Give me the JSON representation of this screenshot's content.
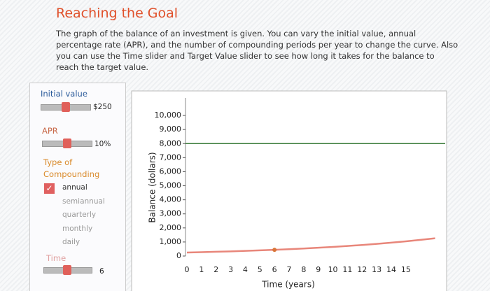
{
  "header": {
    "title": "Reaching the Goal",
    "description": "The graph of the balance of an investment is given. You can vary the initial value, annual percentage rate (APR), and the number of compounding periods per year to change the curve. Also you can use the Time slider and Target Value slider to see how long it takes for the balance to reach the target value."
  },
  "controls": {
    "initial_value": {
      "label": "Initial value",
      "value_label": "$250"
    },
    "apr": {
      "label": "APR",
      "value_label": "10%"
    },
    "compounding": {
      "label": "Type of Compounding",
      "options": [
        "annual",
        "semiannual",
        "quarterly",
        "monthly",
        "daily"
      ],
      "selected_index": 0
    },
    "time": {
      "label": "Time",
      "value_label": "6"
    }
  },
  "chart_data": {
    "type": "line",
    "xlabel": "Time (years)",
    "ylabel": "Balance (dollars)",
    "x": [
      0,
      1,
      2,
      3,
      4,
      5,
      6,
      7,
      8,
      9,
      10,
      11,
      12,
      13,
      14,
      15,
      16,
      17
    ],
    "values": [
      250,
      275,
      302.5,
      332.75,
      366.03,
      402.63,
      442.89,
      487.18,
      535.9,
      589.49,
      648.44,
      713.28,
      784.61,
      863.07,
      949.37,
      1044.31,
      1148.74,
      1263.62
    ],
    "color": "#e8867a",
    "target_value": 8000,
    "target_color": "#3b7d3b",
    "marker": {
      "x": 6,
      "y": 442.89,
      "color": "#d9763a"
    },
    "xlim": [
      0,
      17.5
    ],
    "ylim": [
      0,
      11000
    ],
    "xticks": [
      0,
      1,
      2,
      3,
      4,
      5,
      6,
      7,
      8,
      9,
      10,
      11,
      12,
      13,
      14,
      15
    ],
    "yticks": [
      0,
      {
        "value": 1000,
        "label": "1,000"
      },
      {
        "value": 2000,
        "label": "2,000"
      },
      {
        "value": 3000,
        "label": "3,000"
      },
      {
        "value": 4000,
        "label": "4,000"
      },
      {
        "value": 5000,
        "label": "5,000"
      },
      {
        "value": 6000,
        "label": "6,000"
      },
      {
        "value": 7000,
        "label": "7,000"
      },
      {
        "value": 8000,
        "label": "8,000"
      },
      {
        "value": 9000,
        "label": "9,000"
      },
      {
        "value": 10000,
        "label": "10,000"
      }
    ]
  }
}
